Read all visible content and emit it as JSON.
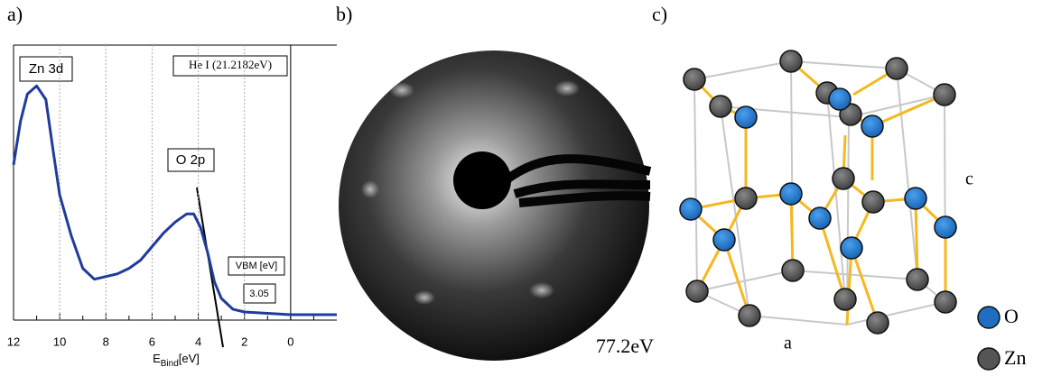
{
  "panels": {
    "a": "a)",
    "b": "b)",
    "c": "c)"
  },
  "chart_data": {
    "type": "line",
    "x": [
      12,
      11.7,
      11.4,
      11,
      10.6,
      10.3,
      10,
      9.5,
      9,
      8.5,
      8,
      7.5,
      7,
      6.5,
      6,
      5.5,
      5,
      4.5,
      4.2,
      3.9,
      3.6,
      3.3,
      3,
      2.5,
      2,
      1,
      0,
      -1,
      -2
    ],
    "values": [
      56,
      72,
      82,
      85,
      80,
      62,
      45,
      30,
      18,
      14,
      15,
      16,
      18,
      21,
      26,
      31,
      35,
      38,
      38,
      33,
      24,
      13,
      7,
      3,
      2,
      1.5,
      1,
      1,
      1
    ],
    "color": "#1f3c9c",
    "xlim": [
      12,
      -2
    ],
    "ylim": [
      0,
      100
    ],
    "xticks": [
      12,
      10,
      8,
      6,
      4,
      2,
      0
    ],
    "minor_xticks": [
      11,
      9,
      7,
      5,
      3,
      1,
      -1
    ],
    "grid": true,
    "xlabel": "E",
    "xlabel_sub": "Bind",
    "xlabel_unit": "[eV]",
    "annotations": {
      "zn3d": "Zn 3d",
      "source": "He I (21.2182eV)",
      "o2p": "O 2p",
      "vbm_title": "VBM [eV]",
      "vbm_value": "3.05"
    }
  },
  "leed": {
    "energy": "77.2eV"
  },
  "crystal": {
    "legend": [
      {
        "label": "O",
        "color": "#1f6fc0"
      },
      {
        "label": "Zn",
        "color": "#555555"
      }
    ],
    "axis_c": "c",
    "axis_a": "a"
  }
}
